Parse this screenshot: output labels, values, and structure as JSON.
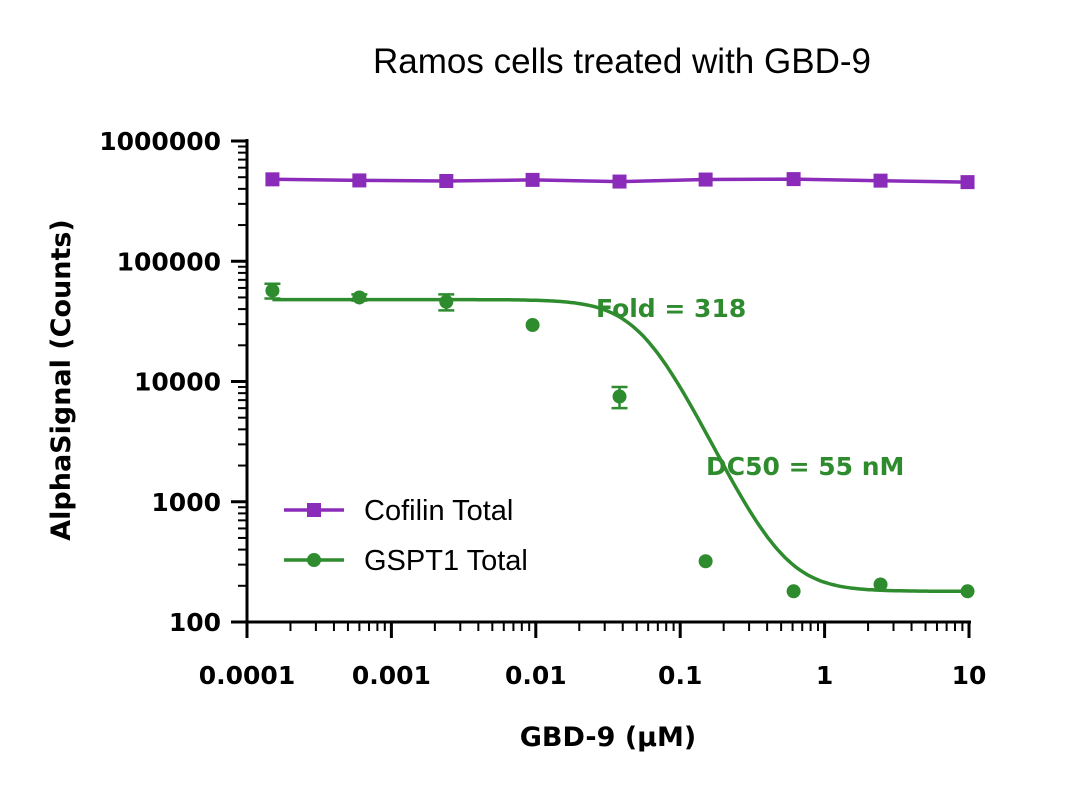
{
  "chart_data": {
    "type": "line",
    "title": "Ramos cells treated with GBD-9",
    "xlabel": "GBD-9 (µM)",
    "ylabel": "AlphaSignal (Counts)",
    "x_scale": "log",
    "y_scale": "log",
    "xlim": [
      0.0001,
      10
    ],
    "ylim": [
      100,
      1000000
    ],
    "x_ticks": [
      "0.0001",
      "0.001",
      "0.01",
      "0.1",
      "1",
      "10"
    ],
    "y_ticks": [
      "100",
      "1000",
      "10000",
      "100000",
      "1000000"
    ],
    "x_tick_values": [
      0.0001,
      0.001,
      0.01,
      0.1,
      1,
      10
    ],
    "y_tick_values": [
      100,
      1000,
      10000,
      100000,
      1000000
    ],
    "x": [
      0.00015,
      0.0006,
      0.0024,
      0.0095,
      0.038,
      0.15,
      0.61,
      2.44,
      9.77
    ],
    "grid": false,
    "legend_position": "bottom-left",
    "series": [
      {
        "name": "Cofilin Total",
        "color": "#8B2BB9",
        "marker": "square",
        "fit": "line",
        "values": [
          480000,
          470000,
          465000,
          475000,
          460000,
          478000,
          482000,
          468000,
          455000
        ],
        "errors": [
          0,
          0,
          0,
          0,
          0,
          0,
          0,
          0,
          0
        ]
      },
      {
        "name": "GSPT1 Total",
        "color": "#2E8B2E",
        "marker": "circle",
        "fit": "sigmoid",
        "values": [
          57000,
          50000,
          46000,
          29500,
          7500,
          320,
          180,
          205,
          180
        ],
        "errors": [
          8000,
          3000,
          7000,
          0,
          1500,
          0,
          0,
          0,
          0
        ],
        "fit_params": {
          "top": 48000,
          "bottom": 180,
          "ec50": 0.055,
          "hill": 2.5
        }
      }
    ],
    "annotations": [
      {
        "text": "Fold = 318",
        "color": "#2E8B2E"
      },
      {
        "text": "DC50 = 55 nM",
        "color": "#2E8B2E"
      }
    ]
  }
}
